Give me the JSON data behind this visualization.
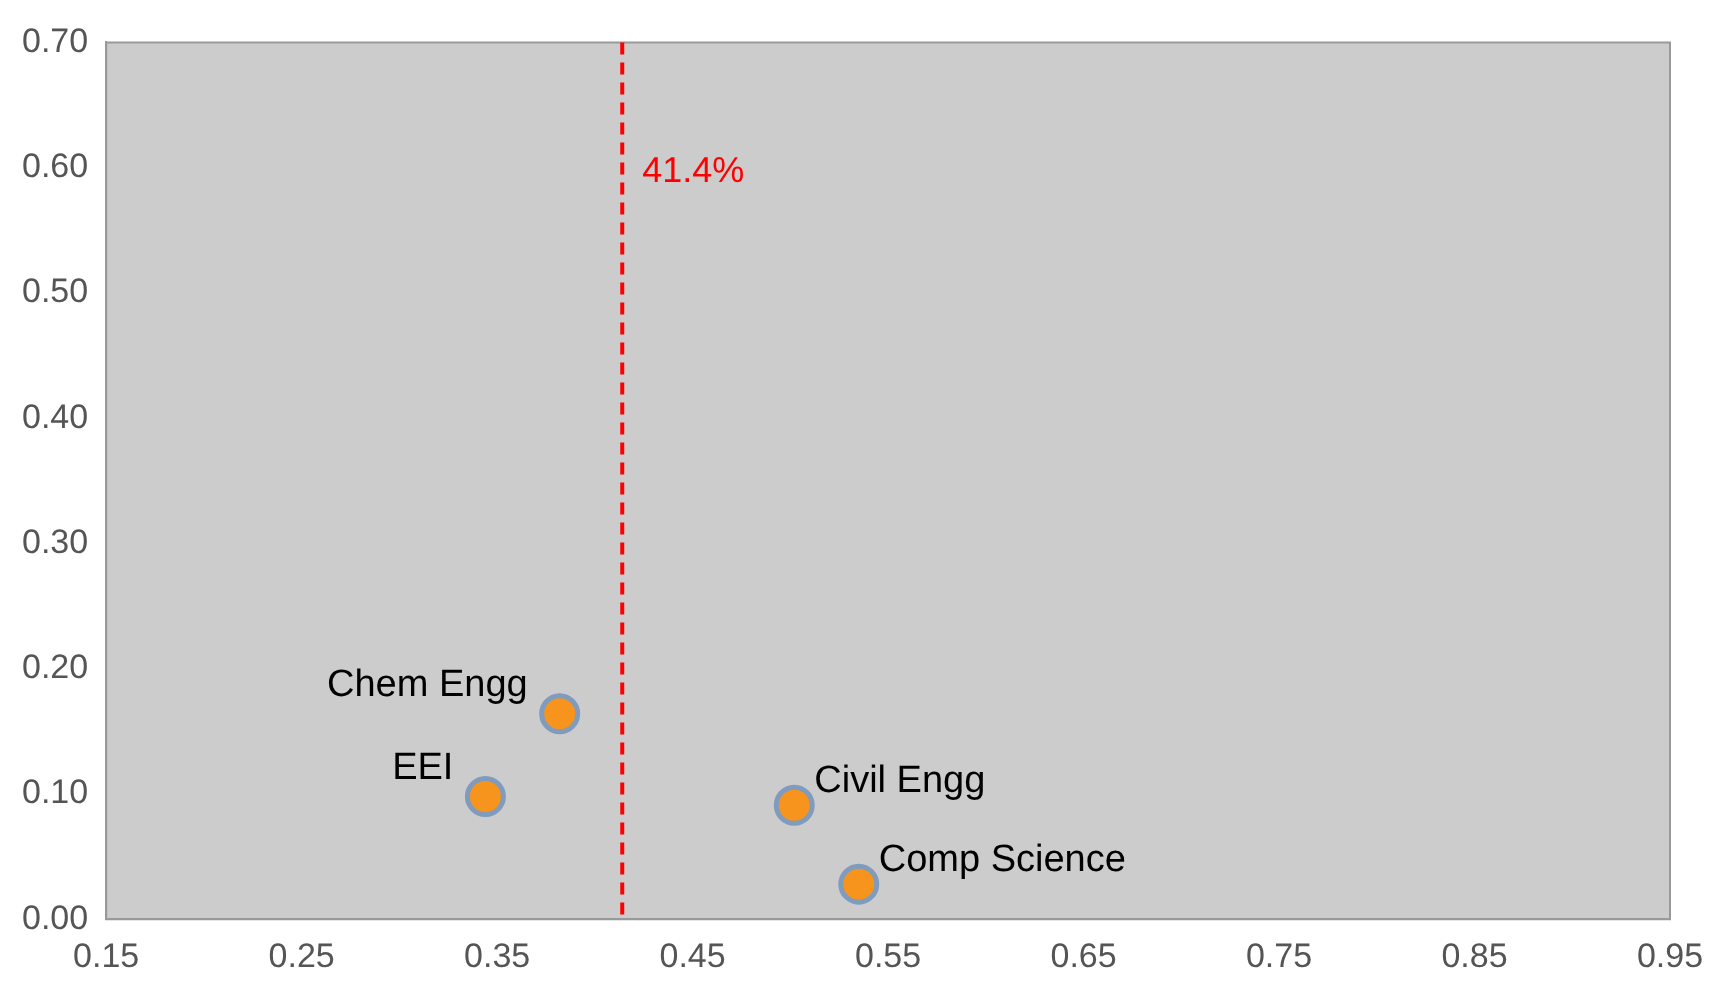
{
  "chart_data": {
    "type": "scatter",
    "x": [
      0.382,
      0.344,
      0.502,
      0.535
    ],
    "series": [
      {
        "color": "#f7941d",
        "values": [
          0.164,
          0.098,
          0.091,
          0.028
        ]
      }
    ],
    "marker": "circle",
    "grid": false,
    "legend": false,
    "xlim": [
      0.15,
      0.95
    ],
    "xticks": [
      {
        "value": 0.15,
        "label": "0.15"
      },
      {
        "value": 0.25,
        "label": "0.25"
      },
      {
        "value": 0.35,
        "label": "0.35"
      },
      {
        "value": 0.45,
        "label": "0.45"
      },
      {
        "value": 0.55,
        "label": "0.55"
      },
      {
        "value": 0.65,
        "label": "0.65"
      },
      {
        "value": 0.75,
        "label": "0.75"
      },
      {
        "value": 0.85,
        "label": "0.85"
      },
      {
        "value": 0.95,
        "label": "0.95"
      }
    ],
    "ylim": [
      0,
      0.7
    ],
    "yticks": [
      {
        "value": 0,
        "label": "0.00"
      },
      {
        "value": 0.1,
        "label": "0.10"
      },
      {
        "value": 0.2,
        "label": "0.20"
      },
      {
        "value": 0.3,
        "label": "0.30"
      },
      {
        "value": 0.4,
        "label": "0.40"
      },
      {
        "value": 0.5,
        "label": "0.50"
      },
      {
        "value": 0.6,
        "label": "0.60"
      },
      {
        "value": 0.7,
        "label": "0.70"
      }
    ],
    "ref_lines": [
      {
        "axis": "x",
        "value": 0.414,
        "label": "41.4%",
        "color": "#ff0000",
        "line_style": "dashed"
      }
    ],
    "annotations": [
      {
        "text": "Chem Engg",
        "x": 0.382,
        "y": 0.164
      },
      {
        "text": "EEI",
        "x": 0.344,
        "y": 0.098
      },
      {
        "text": "Civil Engg",
        "x": 0.502,
        "y": 0.091
      },
      {
        "text": "Comp Science",
        "x": 0.535,
        "y": 0.028
      }
    ]
  }
}
